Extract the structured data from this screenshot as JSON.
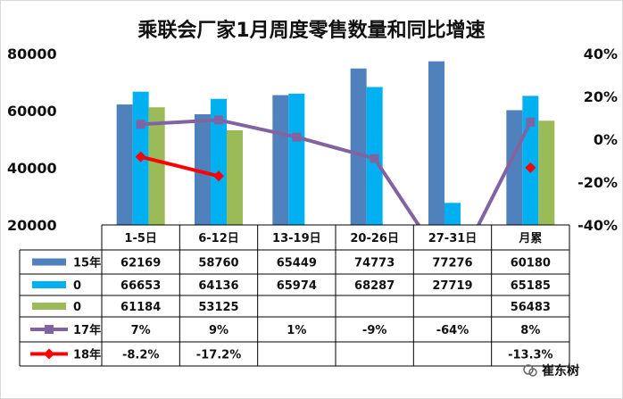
{
  "chart_data": {
    "type": "bar",
    "title": "乘联会厂家1月周度零售数量和同比增速",
    "categories": [
      "1-5日",
      "6-12日",
      "13-19日",
      "20-26日",
      "27-31日",
      "月累"
    ],
    "y_left": {
      "ticks": [
        "80000",
        "60000",
        "40000",
        "20000"
      ],
      "ylim": [
        20000,
        80000
      ]
    },
    "y_right": {
      "ticks": [
        "40%",
        "20%",
        "0%",
        "-20%",
        "-40%"
      ],
      "ylim": [
        -40,
        40
      ],
      "unit": "%"
    },
    "series": [
      {
        "name": "15年",
        "kind": "bar",
        "axis": "left",
        "color": "#4f81bd",
        "values": [
          62169,
          58760,
          65449,
          74773,
          77276,
          60180
        ],
        "labels": [
          "62169",
          "58760",
          "65449",
          "74773",
          "77276",
          "60180"
        ]
      },
      {
        "name": "0",
        "kind": "bar",
        "axis": "left",
        "color": "#00b0f0",
        "values": [
          66653,
          64136,
          65974,
          68287,
          27719,
          65185
        ],
        "labels": [
          "66653",
          "64136",
          "65974",
          "68287",
          "27719",
          "65185"
        ]
      },
      {
        "name": "0",
        "kind": "bar",
        "axis": "left",
        "color": "#9bbb59",
        "values": [
          61184,
          53125,
          null,
          null,
          null,
          56483
        ],
        "labels": [
          "61184",
          "53125",
          "",
          "",
          "",
          "56483"
        ]
      },
      {
        "name": "17年",
        "kind": "line",
        "axis": "right",
        "color": "#8064a2",
        "values": [
          7,
          9,
          1,
          -9,
          -64,
          8
        ],
        "labels": [
          "7%",
          "9%",
          "1%",
          "-9%",
          "-64%",
          "8%"
        ]
      },
      {
        "name": "18年",
        "kind": "line",
        "axis": "right",
        "color": "#ff0000",
        "values": [
          -8.2,
          -17.2,
          null,
          null,
          null,
          -13.3
        ],
        "labels": [
          "-8.2%",
          "-17.2%",
          "",
          "",
          "",
          "-13.3%"
        ]
      }
    ],
    "grid": false,
    "legend": "table"
  },
  "watermark": {
    "text": "崔东树"
  }
}
